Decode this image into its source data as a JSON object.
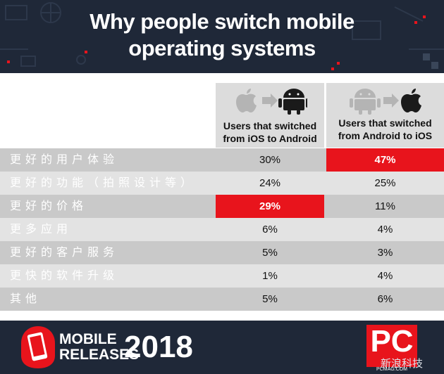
{
  "title_lines": [
    "Why people switch mobile",
    "operating systems"
  ],
  "chart_data": {
    "type": "table",
    "title": "Why people switch mobile operating systems",
    "columns": [
      "Users that switched from iOS to Android",
      "Users that switched from Android to iOS"
    ],
    "rows": [
      {
        "label": "更好的用户体验",
        "values": [
          "30%",
          "47%"
        ],
        "highlight": [
          false,
          true
        ]
      },
      {
        "label": "更好的功能（拍照设计等）",
        "values": [
          "24%",
          "25%"
        ],
        "highlight": [
          false,
          false
        ]
      },
      {
        "label": "更好的价格",
        "values": [
          "29%",
          "11%"
        ],
        "highlight": [
          true,
          false
        ]
      },
      {
        "label": "更多应用",
        "values": [
          "6%",
          "4%"
        ],
        "highlight": [
          false,
          false
        ]
      },
      {
        "label": "更好的客户服务",
        "values": [
          "5%",
          "3%"
        ],
        "highlight": [
          false,
          false
        ]
      },
      {
        "label": "更快的软件升级",
        "values": [
          "1%",
          "4%"
        ],
        "highlight": [
          false,
          false
        ]
      },
      {
        "label": "其他",
        "values": [
          "5%",
          "6%"
        ],
        "highlight": [
          false,
          false
        ]
      }
    ]
  },
  "header_cols": [
    {
      "line1": "Users that switched",
      "line2": "from iOS to Android",
      "icons": [
        "apple-icon",
        "arrow-right-icon",
        "android-icon"
      ]
    },
    {
      "line1": "Users that switched",
      "line2": "from Android to iOS",
      "icons": [
        "android-icon",
        "arrow-right-icon",
        "apple-icon"
      ]
    }
  ],
  "footer": {
    "mobile": "MOBILE",
    "releases": "RELEASES",
    "year": "2018",
    "pc": "PC",
    "pcmag": "PCMAG.COM",
    "watermark": "新浪科技"
  },
  "colors": {
    "header_bg": "#1f2838",
    "highlight": "#e8141c",
    "row_dark": "#c9c9c9",
    "row_light": "#e3e3e3"
  }
}
